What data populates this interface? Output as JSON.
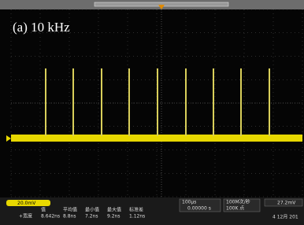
{
  "label": "(a) 10 kHz",
  "channel": {
    "scale": "20.0mV"
  },
  "timebase": {
    "scale": "100μs",
    "delay": "0.00000 s"
  },
  "acquisition": {
    "rate": "100M次/秒",
    "points": "100K 点"
  },
  "trigger": {
    "level": "27.2mV"
  },
  "measurements": {
    "headers": [
      "值",
      "平均值",
      "最小值",
      "最大值",
      "标准差"
    ],
    "rows": [
      [
        "+宽度",
        "8.642ns",
        "8.8ns",
        "7.2ns",
        "9.2ns",
        "1.12ns"
      ]
    ]
  },
  "date": "4 12月 201"
}
